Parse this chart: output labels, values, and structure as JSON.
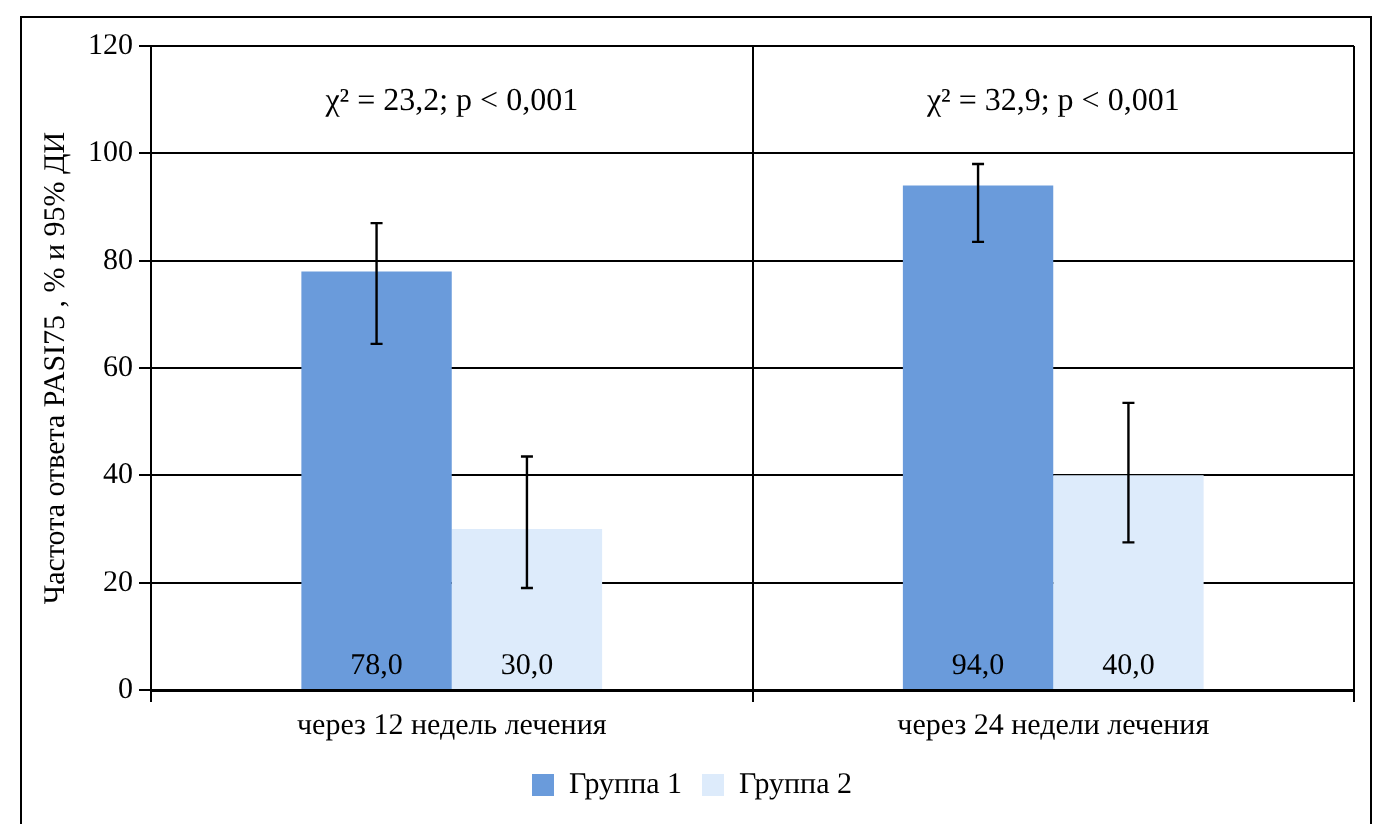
{
  "chart_data": {
    "type": "bar",
    "ylabel": "Частота ответа PASI75 , % и 95% ДИ",
    "categories": [
      "через 12 недель лечения",
      "через 24 недели лечения"
    ],
    "series": [
      {
        "name": "Группа 1",
        "color": "#6a9bdb",
        "values": [
          78.0,
          94.0
        ],
        "errors": [
          [
            64.5,
            87
          ],
          [
            83.5,
            98
          ]
        ],
        "value_labels": [
          "78,0",
          "94,0"
        ]
      },
      {
        "name": "Группа 2",
        "color": "#ddebfb",
        "values": [
          30.0,
          40.0
        ],
        "errors": [
          [
            19,
            43.5
          ],
          [
            27.5,
            53.5
          ]
        ],
        "value_labels": [
          "30,0",
          "40,0"
        ]
      }
    ],
    "ylim": [
      0,
      120
    ],
    "yticks": [
      0,
      20,
      40,
      60,
      80,
      100,
      120
    ],
    "grid": true,
    "legend": "bottom",
    "annotations": [
      "χ² = 23,2; p < 0,001",
      "χ² = 32,9; p < 0,001"
    ]
  }
}
